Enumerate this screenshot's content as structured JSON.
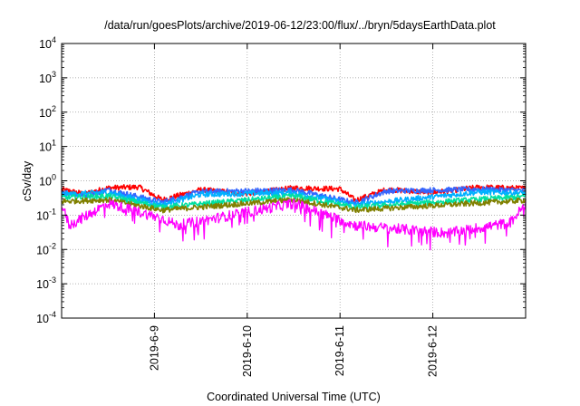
{
  "chart_data": {
    "type": "line",
    "title": "/data/run/goesPlots/archive/2019-06-12/23:00/flux/../bryn/5daysEarthData.plot",
    "xlabel": "Coordinated Universal Time (UTC)",
    "ylabel": "cSv/day",
    "y_scale": "log",
    "ylim": [
      0.0001,
      10000
    ],
    "y_ticks": [
      {
        "base": "10",
        "exp": "4"
      },
      {
        "base": "10",
        "exp": "3"
      },
      {
        "base": "10",
        "exp": "2"
      },
      {
        "base": "10",
        "exp": "1"
      },
      {
        "base": "10",
        "exp": "0"
      },
      {
        "base": "10",
        "exp": "-1"
      },
      {
        "base": "10",
        "exp": "-2"
      },
      {
        "base": "10",
        "exp": "-3"
      },
      {
        "base": "10",
        "exp": "-4"
      }
    ],
    "x_range": [
      "2019-06-08T00:00",
      "2019-06-13T00:00"
    ],
    "x_ticks": [
      "2019-6-9",
      "2019-6-10",
      "2019-6-11",
      "2019-6-12"
    ],
    "grid": true,
    "series": [
      {
        "color": "#ff0000",
        "level": 0.5,
        "values": [
          {
            "x": "2019-06-08T00:00",
            "y": 0.55
          },
          {
            "x": "2019-06-08T06:00",
            "y": 0.42
          },
          {
            "x": "2019-06-08T12:00",
            "y": 0.62
          },
          {
            "x": "2019-06-08T20:00",
            "y": 0.66
          },
          {
            "x": "2019-06-09T02:00",
            "y": 0.28
          },
          {
            "x": "2019-06-09T12:00",
            "y": 0.55
          },
          {
            "x": "2019-06-10T00:00",
            "y": 0.42
          },
          {
            "x": "2019-06-10T12:00",
            "y": 0.62
          },
          {
            "x": "2019-06-11T00:00",
            "y": 0.58
          },
          {
            "x": "2019-06-11T04:00",
            "y": 0.27
          },
          {
            "x": "2019-06-11T12:00",
            "y": 0.56
          },
          {
            "x": "2019-06-12T00:00",
            "y": 0.45
          },
          {
            "x": "2019-06-12T12:00",
            "y": 0.65
          },
          {
            "x": "2019-06-13T00:00",
            "y": 0.6
          }
        ]
      },
      {
        "color": "#3366ff",
        "level": 0.45,
        "values": [
          {
            "x": "2019-06-08T00:00",
            "y": 0.48
          },
          {
            "x": "2019-06-08T06:00",
            "y": 0.36
          },
          {
            "x": "2019-06-08T12:00",
            "y": 0.55
          },
          {
            "x": "2019-06-09T02:00",
            "y": 0.24
          },
          {
            "x": "2019-06-09T12:00",
            "y": 0.48
          },
          {
            "x": "2019-06-10T12:00",
            "y": 0.54
          },
          {
            "x": "2019-06-11T04:00",
            "y": 0.23
          },
          {
            "x": "2019-06-11T12:00",
            "y": 0.5
          },
          {
            "x": "2019-06-12T12:00",
            "y": 0.57
          },
          {
            "x": "2019-06-13T00:00",
            "y": 0.52
          }
        ]
      },
      {
        "color": "#00b0ff",
        "level": 0.38,
        "values": [
          {
            "x": "2019-06-08T00:00",
            "y": 0.4
          },
          {
            "x": "2019-06-08T12:00",
            "y": 0.46
          },
          {
            "x": "2019-06-09T02:00",
            "y": 0.2
          },
          {
            "x": "2019-06-09T12:00",
            "y": 0.4
          },
          {
            "x": "2019-06-10T12:00",
            "y": 0.45
          },
          {
            "x": "2019-06-11T04:00",
            "y": 0.2
          },
          {
            "x": "2019-06-12T12:00",
            "y": 0.47
          },
          {
            "x": "2019-06-13T00:00",
            "y": 0.44
          }
        ]
      },
      {
        "color": "#00e0a0",
        "level": 0.3,
        "values": [
          {
            "x": "2019-06-08T00:00",
            "y": 0.32
          },
          {
            "x": "2019-06-08T12:00",
            "y": 0.36
          },
          {
            "x": "2019-06-09T02:00",
            "y": 0.17
          },
          {
            "x": "2019-06-10T12:00",
            "y": 0.36
          },
          {
            "x": "2019-06-11T04:00",
            "y": 0.17
          },
          {
            "x": "2019-06-13T00:00",
            "y": 0.35
          }
        ]
      },
      {
        "color": "#808000",
        "level": 0.24,
        "values": [
          {
            "x": "2019-06-08T00:00",
            "y": 0.25
          },
          {
            "x": "2019-06-08T12:00",
            "y": 0.28
          },
          {
            "x": "2019-06-09T02:00",
            "y": 0.14
          },
          {
            "x": "2019-06-10T12:00",
            "y": 0.28
          },
          {
            "x": "2019-06-11T04:00",
            "y": 0.14
          },
          {
            "x": "2019-06-13T00:00",
            "y": 0.27
          }
        ]
      },
      {
        "color": "#ff00ff",
        "level": 0.2,
        "values": [
          {
            "x": "2019-06-08T00:00",
            "y": 0.2
          },
          {
            "x": "2019-06-08T02:00",
            "y": 0.05
          },
          {
            "x": "2019-06-08T12:00",
            "y": 0.22
          },
          {
            "x": "2019-06-09T02:00",
            "y": 0.08
          },
          {
            "x": "2019-06-09T06:00",
            "y": 0.05
          },
          {
            "x": "2019-06-10T12:00",
            "y": 0.22
          },
          {
            "x": "2019-06-11T04:00",
            "y": 0.05
          },
          {
            "x": "2019-06-12T04:00",
            "y": 0.03
          },
          {
            "x": "2019-06-12T20:00",
            "y": 0.06
          },
          {
            "x": "2019-06-13T00:00",
            "y": 0.21
          }
        ]
      }
    ]
  }
}
